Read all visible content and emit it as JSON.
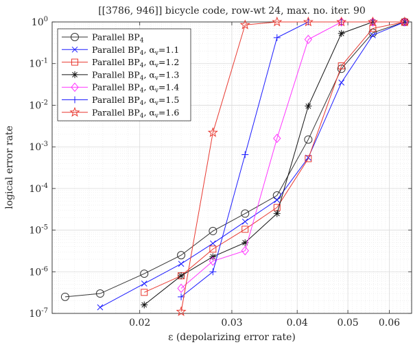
{
  "chart_data": {
    "type": "line",
    "title": "[[3786, 946]] bicycle code, row-wt 24, max. no. iter. 90",
    "xlabel": "ε (depolarizing error rate)",
    "ylabel": "logical error rate",
    "xscale": "log",
    "yscale": "log",
    "xlim": [
      0.0136,
      0.0662
    ],
    "ylim": [
      1e-07,
      1
    ],
    "xticks": [
      0.02,
      0.03,
      0.04,
      0.05,
      0.06
    ],
    "xtick_labels": [
      "0.02",
      "0.03",
      "0.04",
      "0.05",
      "0.06"
    ],
    "yticks": [
      1e-07,
      1e-06,
      1e-05,
      0.0001,
      0.001,
      0.01,
      0.1,
      1
    ],
    "ytick_labels": [
      {
        "base": "10",
        "exp": "-7"
      },
      {
        "base": "10",
        "exp": "-6"
      },
      {
        "base": "10",
        "exp": "-5"
      },
      {
        "base": "10",
        "exp": "-4"
      },
      {
        "base": "10",
        "exp": "-3"
      },
      {
        "base": "10",
        "exp": "-2"
      },
      {
        "base": "10",
        "exp": "-1"
      },
      {
        "base": "10",
        "exp": "0"
      }
    ],
    "grid": true,
    "legend_position": "top-left",
    "series": [
      {
        "name": "Parallel BP4",
        "legend_parts": [
          {
            "t": "Parallel BP"
          },
          {
            "t": "4",
            "sub": true
          }
        ],
        "color": "#333333",
        "marker": "circle",
        "x": [
          0.0144,
          0.0168,
          0.0204,
          0.024,
          0.0276,
          0.0318,
          0.0366,
          0.042,
          0.0486,
          0.0558,
          0.0642
        ],
        "y": [
          2.5e-07,
          3e-07,
          9e-07,
          2.5e-06,
          9.5e-06,
          2.5e-05,
          6.8e-05,
          0.0015,
          0.075,
          0.55,
          1.0
        ]
      },
      {
        "name": "Parallel BP4, αv=1.1",
        "legend_parts": [
          {
            "t": "Parallel BP"
          },
          {
            "t": "4",
            "sub": true
          },
          {
            "t": ", α"
          },
          {
            "t": "v",
            "sub": true
          },
          {
            "t": "=1.1"
          }
        ],
        "color": "#1a1aff",
        "marker": "x",
        "x": [
          0.0168,
          0.0204,
          0.024,
          0.0276,
          0.0318,
          0.0366,
          0.042,
          0.0486,
          0.0558,
          0.0642
        ],
        "y": [
          1.4e-07,
          5.2e-07,
          1.55e-06,
          4.8e-06,
          1.6e-05,
          5.3e-05,
          0.00055,
          0.035,
          0.48,
          1.0
        ]
      },
      {
        "name": "Parallel BP4, αv=1.2",
        "legend_parts": [
          {
            "t": "Parallel BP"
          },
          {
            "t": "4",
            "sub": true
          },
          {
            "t": ", α"
          },
          {
            "t": "v",
            "sub": true
          },
          {
            "t": "=1.2"
          }
        ],
        "color": "#e8372e",
        "marker": "square",
        "x": [
          0.0204,
          0.024,
          0.0276,
          0.0318,
          0.0366,
          0.042,
          0.0486,
          0.0558,
          0.0642
        ],
        "y": [
          3.2e-07,
          8e-07,
          3.5e-06,
          1.05e-05,
          3.5e-05,
          0.00052,
          0.088,
          0.7,
          1.0
        ]
      },
      {
        "name": "Parallel BP4, αv=1.3",
        "legend_parts": [
          {
            "t": "Parallel BP"
          },
          {
            "t": "4",
            "sub": true
          },
          {
            "t": ", α"
          },
          {
            "t": "v",
            "sub": true
          },
          {
            "t": "=1.3"
          }
        ],
        "color": "#111111",
        "marker": "asterisk",
        "x": [
          0.0204,
          0.024,
          0.0276,
          0.0318,
          0.0366,
          0.042,
          0.0486,
          0.0558,
          0.0642
        ],
        "y": [
          1.6e-07,
          8e-07,
          2.3e-06,
          5e-06,
          2.5e-05,
          0.0095,
          0.53,
          1.0,
          1.0
        ]
      },
      {
        "name": "Parallel BP4, αv=1.4",
        "legend_parts": [
          {
            "t": "Parallel BP"
          },
          {
            "t": "4",
            "sub": true
          },
          {
            "t": ", α"
          },
          {
            "t": "v",
            "sub": true
          },
          {
            "t": "=1.4"
          }
        ],
        "color": "#ff33ff",
        "marker": "diamond",
        "x": [
          0.024,
          0.0276,
          0.0318,
          0.0366,
          0.042,
          0.0486,
          0.0558,
          0.0642
        ],
        "y": [
          4e-07,
          1.8e-06,
          3.2e-06,
          0.0016,
          0.38,
          1.0,
          1.0,
          1.0
        ]
      },
      {
        "name": "Parallel BP4, αv=1.5",
        "legend_parts": [
          {
            "t": "Parallel BP"
          },
          {
            "t": "4",
            "sub": true
          },
          {
            "t": ", α"
          },
          {
            "t": "v",
            "sub": true
          },
          {
            "t": "=1.5"
          }
        ],
        "color": "#1a1aff",
        "marker": "plus",
        "x": [
          0.024,
          0.0276,
          0.0318,
          0.0366,
          0.042,
          0.0486,
          0.0558,
          0.0642
        ],
        "y": [
          2.5e-07,
          1e-06,
          0.00065,
          0.42,
          1.0,
          1.0,
          1.0,
          1.0
        ]
      },
      {
        "name": "Parallel BP4, αv=1.6",
        "legend_parts": [
          {
            "t": "Parallel BP"
          },
          {
            "t": "4",
            "sub": true
          },
          {
            "t": ", α"
          },
          {
            "t": "v",
            "sub": true
          },
          {
            "t": "=1.6"
          }
        ],
        "color": "#e8372e",
        "marker": "star",
        "x": [
          0.024,
          0.0276,
          0.0318,
          0.0366,
          0.042,
          0.0486,
          0.0558,
          0.0642
        ],
        "y": [
          1.1e-07,
          0.0022,
          0.85,
          1.0,
          1.0,
          1.0,
          1.0,
          1.0
        ]
      }
    ]
  }
}
